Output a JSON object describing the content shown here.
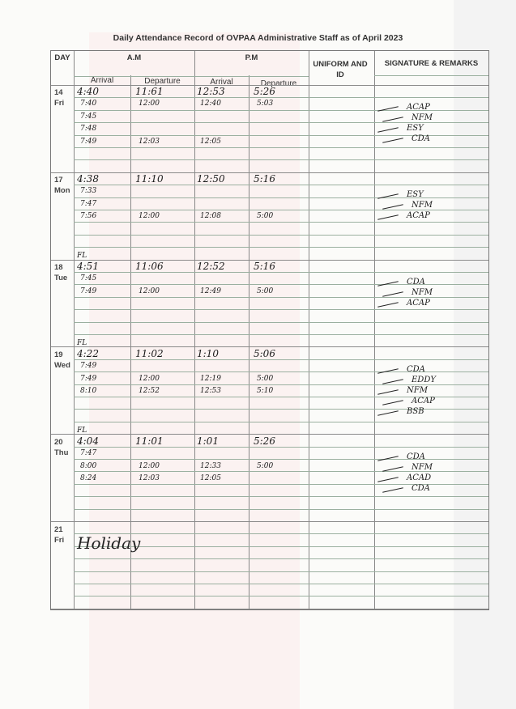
{
  "title": "Daily Attendance Record of OVPAA Administrative Staff as of April 2023",
  "headers": {
    "day": "DAY",
    "am": "A.M",
    "pm": "P.M",
    "uniform": "UNIFORM AND ID",
    "signature": "SIGNATURE & REMARKS",
    "arrival": "Arrival",
    "departure": "Departure"
  },
  "days": [
    {
      "date": "14",
      "weekday": "Fri",
      "note": "",
      "am_arrival": [
        "4:40",
        "7:40",
        "7:45",
        "7:48",
        "7:49"
      ],
      "am_departure": [
        "11:61",
        "12:00",
        "",
        "",
        "12:03"
      ],
      "pm_arrival": [
        "12:53",
        "12:40",
        "",
        "",
        "12:05"
      ],
      "pm_departure": [
        "5:26",
        "5:03"
      ],
      "signatures": [
        "ACAP",
        "NFM",
        "ESY",
        "CDA"
      ]
    },
    {
      "date": "17",
      "weekday": "Mon",
      "note": "",
      "am_arrival": [
        "4:38",
        "7:33",
        "7:47",
        "7:56"
      ],
      "am_departure": [
        "11:10",
        "",
        "",
        "12:00"
      ],
      "pm_arrival": [
        "12:50",
        "",
        "",
        "12:08"
      ],
      "pm_departure": [
        "5:16",
        "",
        "",
        "5:00"
      ],
      "signatures": [
        "ESY",
        "NFM",
        "ACAP"
      ]
    },
    {
      "date": "18",
      "weekday": "Tue",
      "note": "FL",
      "am_arrival": [
        "4:51",
        "7:45",
        "7:49"
      ],
      "am_departure": [
        "11:06",
        "",
        "12:00"
      ],
      "pm_arrival": [
        "12:52",
        "",
        "12:49"
      ],
      "pm_departure": [
        "5:16",
        "",
        "5:00"
      ],
      "signatures": [
        "CDA",
        "NFM",
        "ACAP"
      ]
    },
    {
      "date": "19",
      "weekday": "Wed",
      "note": "FL",
      "am_arrival": [
        "4:22",
        "7:49",
        "7:49",
        "8:10"
      ],
      "am_departure": [
        "11:02",
        "",
        "12:00",
        "12:52"
      ],
      "pm_arrival": [
        "1:10",
        "",
        "12:19",
        "12:53"
      ],
      "pm_departure": [
        "5:06",
        "",
        "5:00",
        "5:10"
      ],
      "signatures": [
        "CDA",
        "EDDY",
        "NFM",
        "ACAP",
        "BSB"
      ]
    },
    {
      "date": "20",
      "weekday": "Thu",
      "note": "FL",
      "am_arrival": [
        "4:04",
        "7:47",
        "8:00",
        "8:24"
      ],
      "am_departure": [
        "11:01",
        "",
        "12:00",
        "12:03"
      ],
      "pm_arrival": [
        "1:01",
        "",
        "12:33",
        "12:05"
      ],
      "pm_departure": [
        "5:26",
        "",
        "5:00"
      ],
      "signatures": [
        "CDA",
        "NFM",
        "ACAD",
        "CDA"
      ]
    },
    {
      "date": "21",
      "weekday": "Fri",
      "note": "",
      "remark": "Holiday",
      "am_arrival": [],
      "am_departure": [],
      "pm_arrival": [],
      "pm_departure": [],
      "signatures": []
    }
  ]
}
